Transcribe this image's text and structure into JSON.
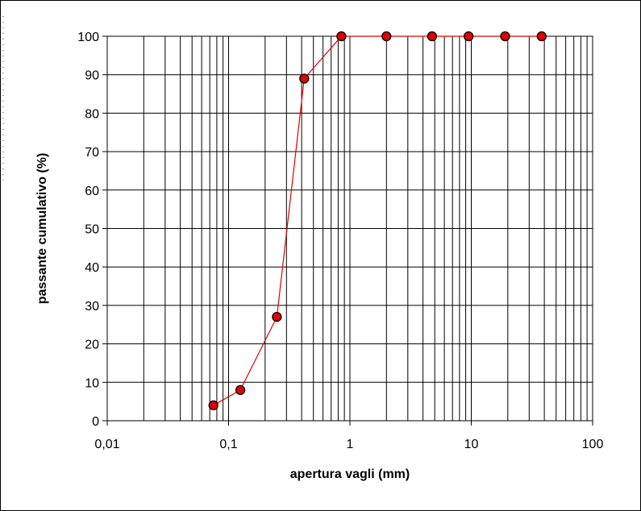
{
  "chart_data": {
    "type": "scatter",
    "xscale": "log",
    "xlabel": "apertura vagli (mm)",
    "ylabel": "passante cumulativo (%)",
    "xlim": [
      0.01,
      100
    ],
    "ylim": [
      0,
      100
    ],
    "x_ticks": [
      "0,01",
      "0,1",
      "1",
      "10",
      "100"
    ],
    "y_ticks": [
      "0",
      "10",
      "20",
      "30",
      "40",
      "50",
      "60",
      "70",
      "80",
      "90",
      "100"
    ],
    "grid": true,
    "legend": "none",
    "series": [
      {
        "x": [
          0.075,
          0.125,
          0.25,
          0.42,
          0.85,
          2,
          4.75,
          9.5,
          19,
          38
        ],
        "y": [
          4,
          8,
          27,
          89,
          100,
          100,
          100,
          100,
          100,
          100
        ]
      }
    ],
    "colors": {
      "line": "#e00000",
      "marker_fill": "#e00000",
      "marker_edge": "#000000",
      "grid": "#000000"
    }
  }
}
